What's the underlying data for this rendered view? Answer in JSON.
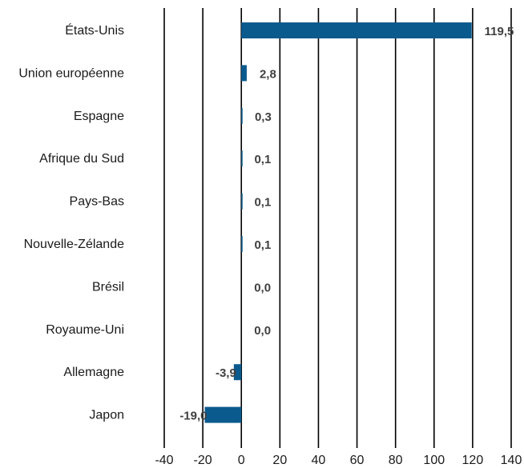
{
  "chart_data": {
    "type": "bar",
    "orientation": "horizontal",
    "categories": [
      "États-Unis",
      "Union européenne",
      "Espagne",
      "Afrique du Sud",
      "Pays-Bas",
      "Nouvelle-Zélande",
      "Brésil",
      "Royaume-Uni",
      "Allemagne",
      "Japon"
    ],
    "values": [
      119.5,
      2.8,
      0.3,
      0.1,
      0.1,
      0.1,
      0.0,
      0.0,
      -3.9,
      -19.0
    ],
    "value_labels": [
      "119,5",
      "2,8",
      "0,3",
      "0,1",
      "0,1",
      "0,1",
      "0,0",
      "0,0",
      "-3,9",
      "-19,0"
    ],
    "xlim": [
      -40,
      140
    ],
    "xticks": [
      -40,
      -20,
      0,
      20,
      40,
      60,
      80,
      100,
      120,
      140
    ],
    "xtick_labels": [
      "-40",
      "-20",
      "0",
      "20",
      "40",
      "60",
      "80",
      "100",
      "120",
      "140"
    ],
    "grid": "vertical",
    "bar_color": "#0b5a8e",
    "label_color": "#404040",
    "title": "",
    "xlabel": "",
    "ylabel": ""
  }
}
